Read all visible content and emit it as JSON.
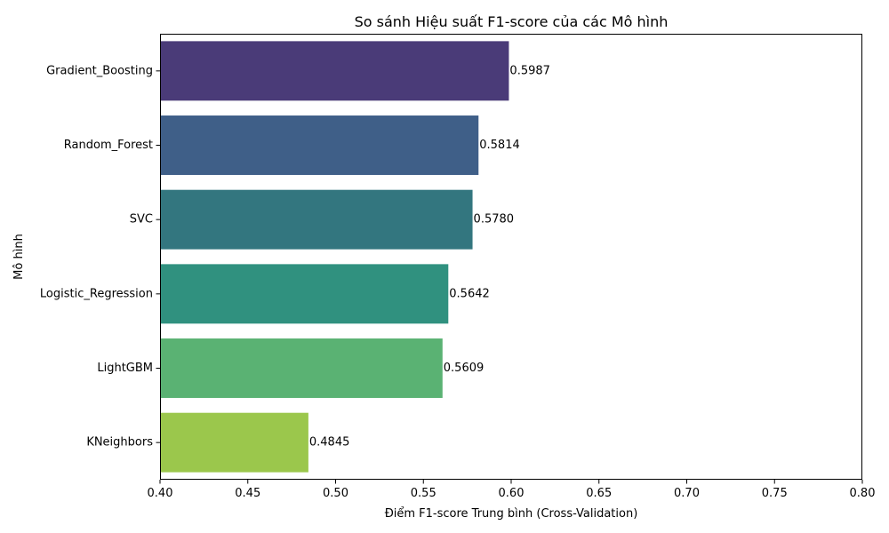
{
  "chart_data": {
    "type": "bar",
    "orientation": "horizontal",
    "title": "So sánh Hiệu suất F1-score của các Mô hình",
    "xlabel": "Điểm F1-score Trung bình (Cross-Validation)",
    "ylabel": "Mô hình",
    "xlim": [
      0.4,
      0.8
    ],
    "xticks": [
      "0.40",
      "0.45",
      "0.50",
      "0.55",
      "0.60",
      "0.65",
      "0.70",
      "0.75",
      "0.80"
    ],
    "grid": false,
    "categories": [
      "Gradient_Boosting",
      "Random_Forest",
      "SVC",
      "Logistic_Regression",
      "LightGBM",
      "KNeighbors"
    ],
    "values": [
      0.5987,
      0.5814,
      0.578,
      0.5642,
      0.5609,
      0.4845
    ],
    "value_labels": [
      "0.5987",
      "0.5814",
      "0.5780",
      "0.5642",
      "0.5609",
      "0.4845"
    ],
    "colors": [
      "#4a3b78",
      "#3f5f88",
      "#33767f",
      "#30917f",
      "#5ab273",
      "#9bc74c"
    ]
  }
}
